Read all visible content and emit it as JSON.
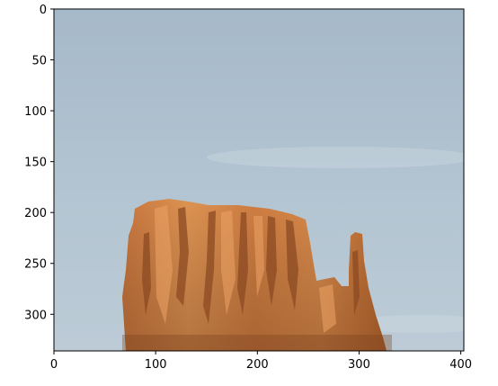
{
  "figure": {
    "image_subject": "sandstone butte against blue sky",
    "colors": {
      "sky_top": "#a9bccb",
      "sky_bottom": "#b9cad6",
      "rock_light": "#d98a4a",
      "rock_mid": "#c06c34",
      "rock_dark": "#8a4a24",
      "axis": "#000000"
    }
  },
  "chart_data": {
    "type": "image",
    "title": "",
    "xlabel": "",
    "ylabel": "",
    "xlim": [
      0,
      403
    ],
    "ylim": [
      336,
      0
    ],
    "x_ticks": [
      0,
      100,
      200,
      300,
      400
    ],
    "y_ticks": [
      0,
      50,
      100,
      150,
      200,
      250,
      300
    ],
    "x_tick_labels": [
      "0",
      "100",
      "200",
      "300",
      "400"
    ],
    "y_tick_labels": [
      "0",
      "50",
      "100",
      "150",
      "200",
      "250",
      "300"
    ]
  }
}
